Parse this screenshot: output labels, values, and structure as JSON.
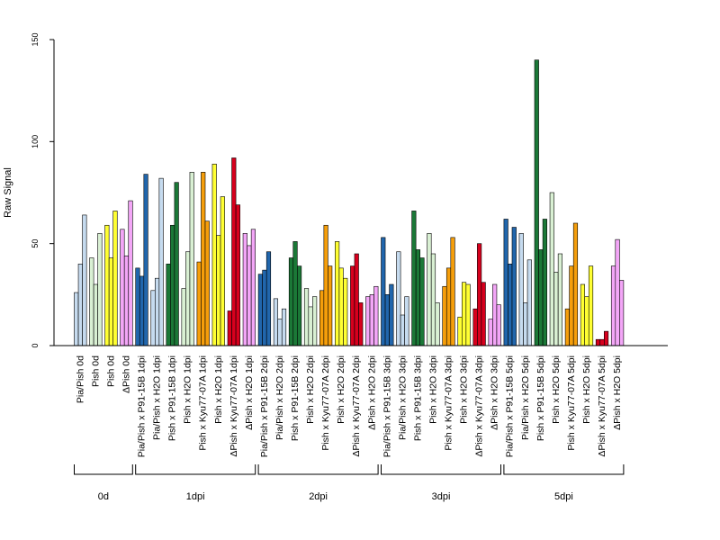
{
  "chart_data": {
    "type": "bar",
    "ylabel": "Raw Signal",
    "ylim": [
      0,
      150
    ],
    "yticks": [
      0,
      50,
      100,
      150
    ],
    "bars_per_group": 3,
    "group_colors": {
      "light_blue": "#c6dbef",
      "blue": "#2166ac",
      "light_green": "#d9f0d3",
      "green": "#1b7837",
      "orange": "#f59e0b",
      "yellow": "#ffff33",
      "red": "#d7001d",
      "pink": "#f3a6f7"
    },
    "groups": [
      {
        "label": "Pia/Pish 0d",
        "color": "light_blue",
        "values": [
          26,
          40,
          64
        ]
      },
      {
        "label": "Pish 0d",
        "color": "light_green",
        "values": [
          43,
          30,
          55
        ]
      },
      {
        "label": "Pish 0d",
        "color": "yellow",
        "values": [
          59,
          43,
          66
        ]
      },
      {
        "label": "ΔPish 0d",
        "color": "pink",
        "values": [
          57,
          44,
          71
        ]
      },
      {
        "label": "Pia/Pish x P91-15B 1dpi",
        "color": "blue",
        "values": [
          38,
          34,
          84
        ]
      },
      {
        "label": "Pia/Pish x H2O 1dpi",
        "color": "light_blue",
        "values": [
          27,
          33,
          82
        ]
      },
      {
        "label": "Pish x P91-15B 1dpi",
        "color": "green",
        "values": [
          40,
          59,
          80
        ]
      },
      {
        "label": "Pish x H2O 1dpi",
        "color": "light_green",
        "values": [
          28,
          46,
          85
        ]
      },
      {
        "label": "Pish x Kyu77-07A 1dpi",
        "color": "orange",
        "values": [
          41,
          85,
          61
        ]
      },
      {
        "label": "Pish x H2O 1dpi",
        "color": "yellow",
        "values": [
          89,
          54,
          73
        ]
      },
      {
        "label": "ΔPish x Kyu77-07A 1dpi",
        "color": "red",
        "values": [
          17,
          92,
          69
        ]
      },
      {
        "label": "ΔPish x H2O 1dpi",
        "color": "pink",
        "values": [
          55,
          49,
          57
        ]
      },
      {
        "label": "Pia/Pish x P91-15B 2dpi",
        "color": "blue",
        "values": [
          35,
          37,
          46
        ]
      },
      {
        "label": "Pia/Pish x H2O 2dpi",
        "color": "light_blue",
        "values": [
          23,
          13,
          18
        ]
      },
      {
        "label": "Pish x P91-15B 2dpi",
        "color": "green",
        "values": [
          43,
          51,
          39
        ]
      },
      {
        "label": "Pish x H2O 2dpi",
        "color": "light_green",
        "values": [
          28,
          19,
          24
        ]
      },
      {
        "label": "Pish x Kyu77-07A 2dpi",
        "color": "orange",
        "values": [
          27,
          59,
          39
        ]
      },
      {
        "label": "Pish x H2O 2dpi",
        "color": "yellow",
        "values": [
          51,
          38,
          33
        ]
      },
      {
        "label": "ΔPish x Kyu77-07A 2dpi",
        "color": "red",
        "values": [
          39,
          45,
          21
        ]
      },
      {
        "label": "ΔPish x H2O 2dpi",
        "color": "pink",
        "values": [
          24,
          25,
          29
        ]
      },
      {
        "label": "Pia/Pish x P91-15B 3dpi",
        "color": "blue",
        "values": [
          53,
          25,
          30
        ]
      },
      {
        "label": "Pia/Pish x H2O 3dpi",
        "color": "light_blue",
        "values": [
          46,
          15,
          24
        ]
      },
      {
        "label": "Pish x P91-15B 3dpi",
        "color": "green",
        "values": [
          66,
          47,
          43
        ]
      },
      {
        "label": "Pish x H2O 3dpi",
        "color": "light_green",
        "values": [
          55,
          45,
          21
        ]
      },
      {
        "label": "Pish x Kyu77-07A 3dpi",
        "color": "orange",
        "values": [
          29,
          38,
          53
        ]
      },
      {
        "label": "Pish x H2O 3dpi",
        "color": "yellow",
        "values": [
          14,
          31,
          30
        ]
      },
      {
        "label": "ΔPish x Kyu77-07A 3dpi",
        "color": "red",
        "values": [
          18,
          50,
          31
        ]
      },
      {
        "label": "ΔPish x H2O 3dpi",
        "color": "pink",
        "values": [
          13,
          30,
          20
        ]
      },
      {
        "label": "Pia/Pish x P91-15B 5dpi",
        "color": "blue",
        "values": [
          62,
          40,
          58
        ]
      },
      {
        "label": "Pia/Pish x H2O 5dpi",
        "color": "light_blue",
        "values": [
          55,
          21,
          42
        ]
      },
      {
        "label": "Pish x P91-15B 5dpi",
        "color": "green",
        "values": [
          140,
          47,
          62
        ]
      },
      {
        "label": "Pish x H2O 5dpi",
        "color": "light_green",
        "values": [
          75,
          36,
          45
        ]
      },
      {
        "label": "Pish x Kyu77-07A 5dpi",
        "color": "orange",
        "values": [
          18,
          39,
          60
        ]
      },
      {
        "label": "Pish x H2O 5dpi",
        "color": "yellow",
        "values": [
          30,
          24,
          39
        ]
      },
      {
        "label": "ΔPish x Kyu77-07A 5dpi",
        "color": "red",
        "values": [
          3,
          3,
          7
        ]
      },
      {
        "label": "ΔPish x H2O 5dpi",
        "color": "pink",
        "values": [
          39,
          52,
          32
        ]
      }
    ],
    "timepoints": [
      {
        "label": "0d",
        "first_group": 0,
        "last_group": 3
      },
      {
        "label": "1dpi",
        "first_group": 4,
        "last_group": 11
      },
      {
        "label": "2dpi",
        "first_group": 12,
        "last_group": 19
      },
      {
        "label": "3dpi",
        "first_group": 20,
        "last_group": 27
      },
      {
        "label": "5dpi",
        "first_group": 28,
        "last_group": 35
      }
    ]
  }
}
